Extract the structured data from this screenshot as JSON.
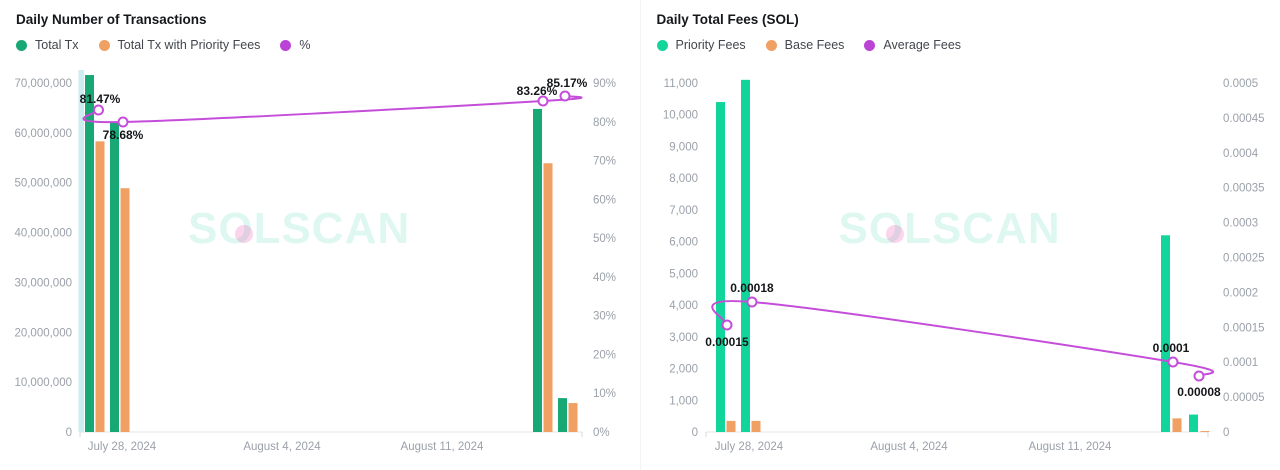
{
  "watermark": "SOLSCAN",
  "charts": [
    {
      "title": "Daily Number of Transactions",
      "legend": [
        {
          "label": "Total Tx",
          "color": "#18a876"
        },
        {
          "label": "Total Tx with Priority Fees",
          "color": "#f0a062"
        },
        {
          "label": "%",
          "color": "#bb44d6"
        }
      ]
    },
    {
      "title": "Daily Total Fees (SOL)",
      "legend": [
        {
          "label": "Priority Fees",
          "color": "#12d59c"
        },
        {
          "label": "Base Fees",
          "color": "#f0a062"
        },
        {
          "label": "Average Fees",
          "color": "#bb44d6"
        }
      ]
    }
  ],
  "chart_data": [
    {
      "type": "bar+line",
      "title": "Daily Number of Transactions",
      "x_axis_ticks": [
        "July 28, 2024",
        "August 4, 2024",
        "August 11, 2024"
      ],
      "grid": false,
      "legend_position": "top-left",
      "y_left": {
        "ticks": [
          "70,000,000",
          "60,000,000",
          "50,000,000",
          "40,000,000",
          "30,000,000",
          "20,000,000",
          "10,000,000",
          "0"
        ],
        "range": [
          0,
          70000000
        ]
      },
      "y_right": {
        "ticks": [
          "90%",
          "80%",
          "70%",
          "60%",
          "50%",
          "40%",
          "30%",
          "20%",
          "10%",
          "0%"
        ],
        "range": [
          0,
          90
        ]
      },
      "series": [
        {
          "name": "Total Tx",
          "type": "bar",
          "axis": "left",
          "color": "#18a876",
          "values": [
            71600000,
            62200000,
            64800000,
            6800000
          ]
        },
        {
          "name": "Total Tx with Priority Fees",
          "type": "bar",
          "axis": "left",
          "color": "#f0a062",
          "values": [
            58300000,
            48900000,
            53900000,
            5800000
          ]
        },
        {
          "name": "%",
          "type": "line",
          "axis": "right",
          "color": "#c44dd9",
          "values": [
            81.47,
            78.68,
            83.26,
            85.17
          ],
          "point_labels": [
            "81.47%",
            "78.68%",
            "83.26%",
            "85.17%"
          ]
        }
      ]
    },
    {
      "type": "bar+line",
      "title": "Daily Total Fees (SOL)",
      "x_axis_ticks": [
        "July 28, 2024",
        "August 4, 2024",
        "August 11, 2024"
      ],
      "grid": false,
      "legend_position": "top-left",
      "y_left": {
        "ticks": [
          "11,000",
          "10,000",
          "9,000",
          "8,000",
          "7,000",
          "6,000",
          "5,000",
          "4,000",
          "3,000",
          "2,000",
          "1,000",
          "0"
        ],
        "range": [
          0,
          11000
        ]
      },
      "y_right": {
        "ticks": [
          "0.0005",
          "0.00045",
          "0.0004",
          "0.00035",
          "0.0003",
          "0.00025",
          "0.0002",
          "0.00015",
          "0.0001",
          "0.00005",
          "0"
        ],
        "range": [
          0,
          0.0005
        ]
      },
      "series": [
        {
          "name": "Priority Fees",
          "type": "bar",
          "axis": "left",
          "color": "#12d59c",
          "values": [
            10400,
            11100,
            6200,
            550
          ]
        },
        {
          "name": "Base Fees",
          "type": "bar",
          "axis": "left",
          "color": "#f0a062",
          "values": [
            350,
            350,
            430,
            30
          ]
        },
        {
          "name": "Average Fees",
          "type": "line",
          "axis": "right",
          "color": "#c44dd9",
          "values": [
            0.00015,
            0.00018,
            0.0001,
            8e-05
          ],
          "point_labels": [
            "0.00015",
            "0.00018",
            "0.0001",
            "0.00008"
          ]
        }
      ]
    }
  ]
}
